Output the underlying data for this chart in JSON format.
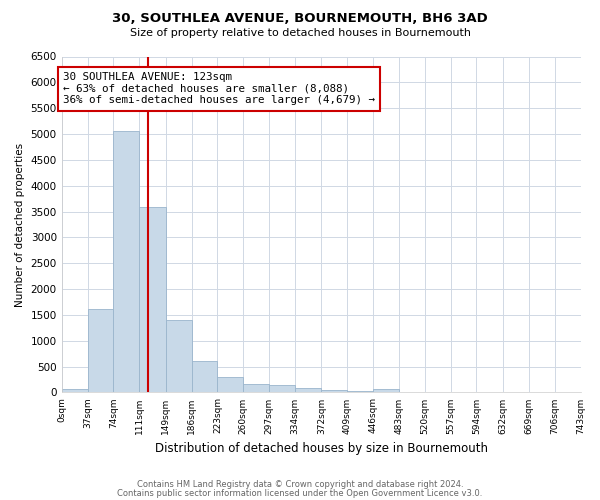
{
  "title1": "30, SOUTHLEA AVENUE, BOURNEMOUTH, BH6 3AD",
  "title2": "Size of property relative to detached houses in Bournemouth",
  "xlabel": "Distribution of detached houses by size in Bournemouth",
  "ylabel": "Number of detached properties",
  "footer1": "Contains HM Land Registry data © Crown copyright and database right 2024.",
  "footer2": "Contains public sector information licensed under the Open Government Licence v3.0.",
  "bin_edges": [
    0,
    37,
    74,
    111,
    149,
    186,
    223,
    260,
    297,
    334,
    372,
    409,
    446,
    483,
    520,
    557,
    594,
    632,
    669,
    706,
    743
  ],
  "bar_heights": [
    75,
    1620,
    5060,
    3580,
    1400,
    600,
    300,
    160,
    140,
    90,
    50,
    30,
    60,
    0,
    0,
    0,
    0,
    0,
    0,
    0
  ],
  "bar_color": "#c8d9e8",
  "bar_edge_color": "#9ab5cc",
  "vline_x": 123,
  "vline_color": "#cc0000",
  "annotation_text": "30 SOUTHLEA AVENUE: 123sqm\n← 63% of detached houses are smaller (8,088)\n36% of semi-detached houses are larger (4,679) →",
  "annotation_box_color": "white",
  "annotation_box_edge_color": "#cc0000",
  "ylim": [
    0,
    6500
  ],
  "yticks": [
    0,
    500,
    1000,
    1500,
    2000,
    2500,
    3000,
    3500,
    4000,
    4500,
    5000,
    5500,
    6000,
    6500
  ],
  "background_color": "white",
  "grid_color": "#d0d8e4"
}
